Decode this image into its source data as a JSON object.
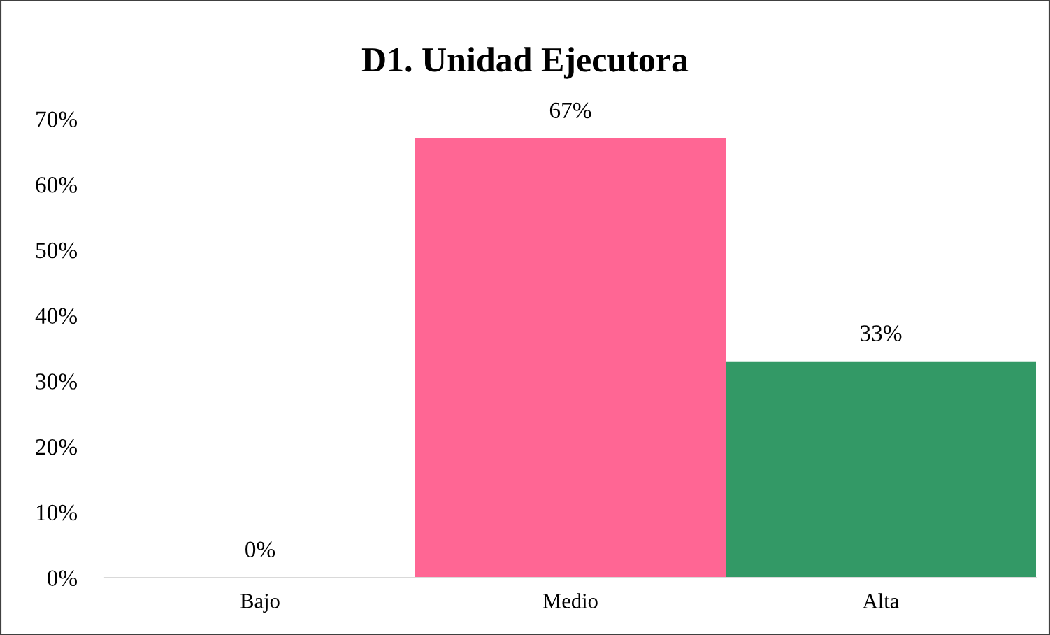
{
  "chart_data": {
    "type": "bar",
    "title": "D1. Unidad Ejecutora",
    "categories": [
      "Bajo",
      "Medio",
      "Alta"
    ],
    "values": [
      0,
      67,
      33
    ],
    "colors": [
      "#4472c4",
      "#ff6694",
      "#339966"
    ],
    "value_labels": [
      "0%",
      "67%",
      "33%"
    ],
    "ylim": [
      0,
      70
    ],
    "yticks": [
      {
        "value": 0,
        "label": "0%"
      },
      {
        "value": 10,
        "label": "10%"
      },
      {
        "value": 20,
        "label": "20%"
      },
      {
        "value": 30,
        "label": "30%"
      },
      {
        "value": 40,
        "label": "40%"
      },
      {
        "value": 50,
        "label": "50%"
      },
      {
        "value": 60,
        "label": "60%"
      },
      {
        "value": 70,
        "label": "70%"
      }
    ],
    "grid": false,
    "legend": false
  }
}
